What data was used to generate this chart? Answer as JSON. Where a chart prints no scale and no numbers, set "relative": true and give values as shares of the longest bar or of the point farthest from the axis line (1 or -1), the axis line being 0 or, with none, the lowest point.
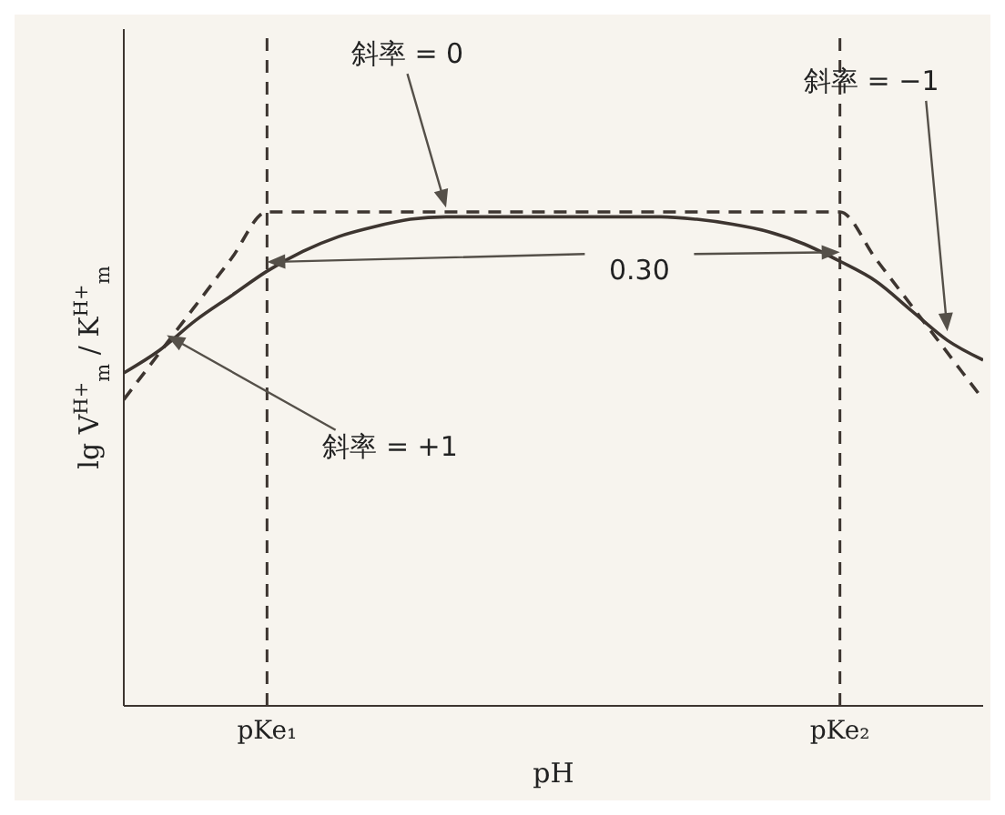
{
  "chart_data": {
    "type": "line",
    "relative": true,
    "xlabel": "pH",
    "ylabel": "lg V$^{H+}$$_{m}$ / K$^{H+}$$_{m}$",
    "categories": [
      null,
      null,
      null,
      null,
      "pKe₁",
      null,
      null,
      null,
      null,
      null,
      null,
      null,
      null,
      null,
      null,
      null,
      null,
      null,
      null,
      null,
      "pKe₂",
      null,
      null,
      null,
      null
    ],
    "series": [
      {
        "color": "#3d3530",
        "line_style": "solid",
        "values": [
          0.674,
          0.72,
          0.78,
          0.83,
          0.88,
          0.92,
          0.95,
          0.97,
          0.985,
          0.99,
          0.99,
          0.99,
          0.99,
          0.99,
          0.99,
          0.99,
          0.985,
          0.975,
          0.96,
          0.935,
          0.9,
          0.86,
          0.8,
          0.74,
          0.7
        ]
      },
      {
        "color": "#3d3530",
        "line_style": "dashed",
        "values": [
          0.62,
          0.715,
          0.81,
          0.905,
          1,
          1,
          1,
          1,
          1,
          1,
          1,
          1,
          1,
          1,
          1,
          1,
          1,
          1,
          1,
          1,
          1,
          0.905,
          0.81,
          0.715,
          0.62
        ]
      }
    ],
    "ref_lines": [
      {
        "axis": "x",
        "value": "pKe₁",
        "color": "#3d3530",
        "line_style": "dashed"
      },
      {
        "axis": "x",
        "value": "pKe₂",
        "color": "#3d3530",
        "line_style": "dashed"
      }
    ],
    "annotations": [
      "斜率 = 0",
      "斜率 = −1",
      "斜率 = +1",
      "0.30"
    ],
    "legend": false,
    "grid": false,
    "marker": "none"
  }
}
